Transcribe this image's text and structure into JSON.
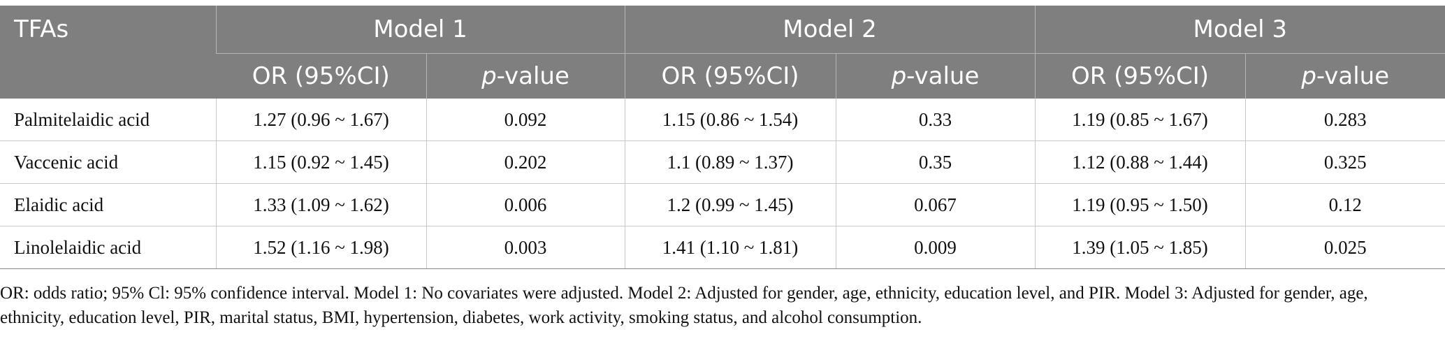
{
  "table": {
    "row_header": "TFAs",
    "models": [
      "Model 1",
      "Model 2",
      "Model 3"
    ],
    "or_label": "OR (95%CI)",
    "p_prefix": "p",
    "p_suffix": "-value",
    "rows": [
      {
        "name": "Palmitelaidic acid",
        "cells": [
          "1.27 (0.96 ~ 1.67)",
          "0.092",
          "1.15 (0.86 ~ 1.54)",
          "0.33",
          "1.19 (0.85 ~ 1.67)",
          "0.283"
        ]
      },
      {
        "name": "Vaccenic acid",
        "cells": [
          "1.15 (0.92 ~ 1.45)",
          "0.202",
          "1.1 (0.89 ~ 1.37)",
          "0.35",
          "1.12 (0.88 ~ 1.44)",
          "0.325"
        ]
      },
      {
        "name": "Elaidic acid",
        "cells": [
          "1.33 (1.09 ~ 1.62)",
          "0.006",
          "1.2 (0.99 ~ 1.45)",
          "0.067",
          "1.19 (0.95 ~ 1.50)",
          "0.12"
        ]
      },
      {
        "name": "Linolelaidic acid",
        "cells": [
          "1.52 (1.16 ~ 1.98)",
          "0.003",
          "1.41 (1.10 ~ 1.81)",
          "0.009",
          "1.39 (1.05 ~ 1.85)",
          "0.025"
        ]
      }
    ]
  },
  "footnote": "OR: odds ratio; 95% Cl: 95% confidence interval. Model 1: No covariates were adjusted. Model 2: Adjusted for gender, age, ethnicity, education level, and PIR. Model 3: Adjusted for gender, age, ethnicity, education level, PIR, marital status, BMI, hypertension, diabetes, work activity, smoking status, and alcohol consumption.",
  "colors": {
    "header_bg": "#7f7f7f",
    "header_text": "#ffffff",
    "grid": "#c9c9c9"
  }
}
